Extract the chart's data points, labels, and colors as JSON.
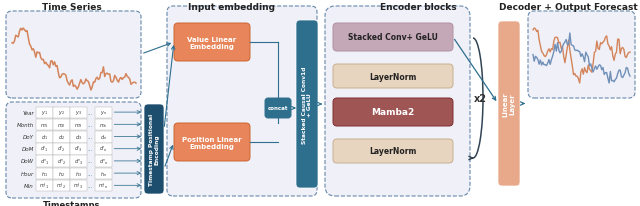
{
  "title_ts": "Time Series",
  "title_ie": "Input embedding",
  "title_eb": "Encoder blocks",
  "title_dec": "Decoder + Output Forecast",
  "ts_label": "Timestamps",
  "block_tpe": "Timestamp Positional\nEncoding",
  "block_vle": "Value Linear\nEmbedding",
  "block_ple": "Position Linear\nEmbedding",
  "block_concat": "concat",
  "block_scausal": "Stacked Causal Conv1d\n+ GeLU",
  "block_stacked": "Stacked Conv+ GeLU",
  "block_ln1": "LayerNorm",
  "block_mamba": "Mamba2",
  "block_ln2": "LayerNorm",
  "block_x2": "x2",
  "block_linear": "Linear\nLayer",
  "color_orange": "#E8855A",
  "color_teal": "#2E6F8E",
  "color_teal_dark": "#1E4E6E",
  "color_stacked": "#C5A8B8",
  "color_layernorm": "#E8D5C0",
  "color_mamba": "#A05555",
  "color_linear": "#E8A88A",
  "color_dashed_fill": "#EEEEEE",
  "color_encoder_fill": "#EAEAF0",
  "color_dashed_border": "#6688AA",
  "color_text_dark": "#222222",
  "color_arrow": "#2E6F8E",
  "color_ts_orange": "#D4845A",
  "color_ts_blue": "#7090B8"
}
